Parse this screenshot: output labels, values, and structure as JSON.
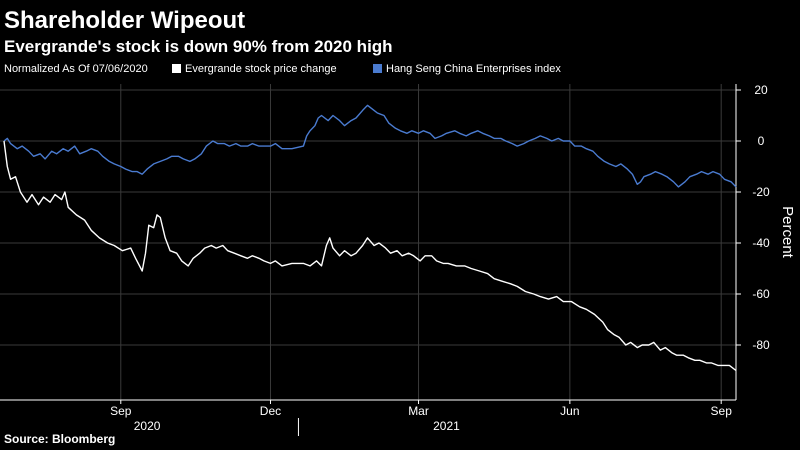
{
  "header": {
    "title": "Shareholder Wipeout",
    "subtitle": "Evergrande's stock is down 90% from 2020 high"
  },
  "legend": {
    "note": "Normalized As Of 07/06/2020",
    "items": [
      {
        "label": "Evergrande stock price change",
        "color": "#ffffff"
      },
      {
        "label": "Hang Seng China Enterprises index",
        "color": "#4a7bd0"
      }
    ]
  },
  "footer": {
    "source": "Source: Bloomberg"
  },
  "colors": {
    "background": "#000000",
    "grid": "#3a3a3a",
    "evergrande": "#ffffff",
    "hscei": "#4a7bd0"
  },
  "chart_data": {
    "type": "line",
    "title": "Shareholder Wipeout",
    "subtitle": "Evergrande's stock is down 90% from 2020 high",
    "xlabel": "",
    "ylabel": "Percent",
    "ylim": [
      -100,
      20
    ],
    "xlim": [
      "2020-07-06",
      "2021-09-24"
    ],
    "yticks": [
      20,
      0,
      -20,
      -40,
      -60,
      -80
    ],
    "xticks": [
      {
        "date": "2020-09-15",
        "label": "Sep"
      },
      {
        "date": "2020-12-15",
        "label": "Dec"
      },
      {
        "date": "2021-03-15",
        "label": "Mar"
      },
      {
        "date": "2021-06-15",
        "label": "Jun"
      },
      {
        "date": "2021-09-15",
        "label": "Sep"
      }
    ],
    "year_labels": [
      {
        "date": "2020-10-01",
        "label": "2020"
      },
      {
        "date": "2021-04-01",
        "label": "2021"
      }
    ],
    "year_divider": "2021-01-01",
    "grid": true,
    "legend_position": "top",
    "series": [
      {
        "name": "Evergrande stock price change",
        "color": "#ffffff",
        "points": [
          [
            "2020-07-06",
            0
          ],
          [
            "2020-07-08",
            -10
          ],
          [
            "2020-07-10",
            -15
          ],
          [
            "2020-07-13",
            -14
          ],
          [
            "2020-07-16",
            -20
          ],
          [
            "2020-07-20",
            -24
          ],
          [
            "2020-07-23",
            -21
          ],
          [
            "2020-07-27",
            -25
          ],
          [
            "2020-07-30",
            -22
          ],
          [
            "2020-08-03",
            -24
          ],
          [
            "2020-08-06",
            -21
          ],
          [
            "2020-08-10",
            -23
          ],
          [
            "2020-08-12",
            -20
          ],
          [
            "2020-08-14",
            -26
          ],
          [
            "2020-08-19",
            -29
          ],
          [
            "2020-08-24",
            -31
          ],
          [
            "2020-08-28",
            -35
          ],
          [
            "2020-09-02",
            -38
          ],
          [
            "2020-09-07",
            -40
          ],
          [
            "2020-09-11",
            -41
          ],
          [
            "2020-09-16",
            -43
          ],
          [
            "2020-09-21",
            -42
          ],
          [
            "2020-09-24",
            -46
          ],
          [
            "2020-09-28",
            -51
          ],
          [
            "2020-09-30",
            -44
          ],
          [
            "2020-10-02",
            -33
          ],
          [
            "2020-10-05",
            -34
          ],
          [
            "2020-10-07",
            -29
          ],
          [
            "2020-10-09",
            -30
          ],
          [
            "2020-10-12",
            -38
          ],
          [
            "2020-10-15",
            -43
          ],
          [
            "2020-10-19",
            -44
          ],
          [
            "2020-10-22",
            -47
          ],
          [
            "2020-10-26",
            -49
          ],
          [
            "2020-10-29",
            -46
          ],
          [
            "2020-11-02",
            -44
          ],
          [
            "2020-11-05",
            -42
          ],
          [
            "2020-11-09",
            -41
          ],
          [
            "2020-11-12",
            -42
          ],
          [
            "2020-11-16",
            -41
          ],
          [
            "2020-11-19",
            -43
          ],
          [
            "2020-11-23",
            -44
          ],
          [
            "2020-11-27",
            -45
          ],
          [
            "2020-12-01",
            -46
          ],
          [
            "2020-12-04",
            -45
          ],
          [
            "2020-12-08",
            -46
          ],
          [
            "2020-12-11",
            -47
          ],
          [
            "2020-12-15",
            -48
          ],
          [
            "2020-12-18",
            -47
          ],
          [
            "2020-12-22",
            -49
          ],
          [
            "2020-12-28",
            -48
          ],
          [
            "2021-01-04",
            -48
          ],
          [
            "2021-01-08",
            -49
          ],
          [
            "2021-01-12",
            -47
          ],
          [
            "2021-01-15",
            -49
          ],
          [
            "2021-01-18",
            -41
          ],
          [
            "2021-01-20",
            -38
          ],
          [
            "2021-01-22",
            -42
          ],
          [
            "2021-01-26",
            -45
          ],
          [
            "2021-01-29",
            -43
          ],
          [
            "2021-02-02",
            -45
          ],
          [
            "2021-02-05",
            -44
          ],
          [
            "2021-02-09",
            -41
          ],
          [
            "2021-02-12",
            -38
          ],
          [
            "2021-02-16",
            -41
          ],
          [
            "2021-02-19",
            -40
          ],
          [
            "2021-02-23",
            -42
          ],
          [
            "2021-02-26",
            -44
          ],
          [
            "2021-03-02",
            -43
          ],
          [
            "2021-03-05",
            -45
          ],
          [
            "2021-03-09",
            -44
          ],
          [
            "2021-03-12",
            -45
          ],
          [
            "2021-03-16",
            -47
          ],
          [
            "2021-03-19",
            -45
          ],
          [
            "2021-03-23",
            -45
          ],
          [
            "2021-03-26",
            -47
          ],
          [
            "2021-03-30",
            -48
          ],
          [
            "2021-04-02",
            -48
          ],
          [
            "2021-04-07",
            -49
          ],
          [
            "2021-04-12",
            -49
          ],
          [
            "2021-04-16",
            -50
          ],
          [
            "2021-04-21",
            -51
          ],
          [
            "2021-04-26",
            -52
          ],
          [
            "2021-04-30",
            -54
          ],
          [
            "2021-05-05",
            -55
          ],
          [
            "2021-05-10",
            -56
          ],
          [
            "2021-05-14",
            -57
          ],
          [
            "2021-05-19",
            -59
          ],
          [
            "2021-05-24",
            -60
          ],
          [
            "2021-05-28",
            -61
          ],
          [
            "2021-06-02",
            -62
          ],
          [
            "2021-06-07",
            -61
          ],
          [
            "2021-06-11",
            -63
          ],
          [
            "2021-06-16",
            -63
          ],
          [
            "2021-06-21",
            -65
          ],
          [
            "2021-06-25",
            -66
          ],
          [
            "2021-06-30",
            -68
          ],
          [
            "2021-07-05",
            -71
          ],
          [
            "2021-07-08",
            -74
          ],
          [
            "2021-07-12",
            -76
          ],
          [
            "2021-07-15",
            -77
          ],
          [
            "2021-07-19",
            -80
          ],
          [
            "2021-07-22",
            -79
          ],
          [
            "2021-07-26",
            -81
          ],
          [
            "2021-07-29",
            -80
          ],
          [
            "2021-08-02",
            -80
          ],
          [
            "2021-08-05",
            -79
          ],
          [
            "2021-08-09",
            -82
          ],
          [
            "2021-08-12",
            -81
          ],
          [
            "2021-08-16",
            -83
          ],
          [
            "2021-08-19",
            -84
          ],
          [
            "2021-08-23",
            -84
          ],
          [
            "2021-08-26",
            -85
          ],
          [
            "2021-08-30",
            -86
          ],
          [
            "2021-09-02",
            -86
          ],
          [
            "2021-09-06",
            -87
          ],
          [
            "2021-09-09",
            -87
          ],
          [
            "2021-09-13",
            -88
          ],
          [
            "2021-09-16",
            -88
          ],
          [
            "2021-09-20",
            -88
          ],
          [
            "2021-09-24",
            -90
          ]
        ]
      },
      {
        "name": "Hang Seng China Enterprises index",
        "color": "#4a7bd0",
        "points": [
          [
            "2020-07-06",
            0
          ],
          [
            "2020-07-08",
            1
          ],
          [
            "2020-07-10",
            -1
          ],
          [
            "2020-07-14",
            -3
          ],
          [
            "2020-07-17",
            -2
          ],
          [
            "2020-07-21",
            -4
          ],
          [
            "2020-07-24",
            -6
          ],
          [
            "2020-07-28",
            -5
          ],
          [
            "2020-07-31",
            -7
          ],
          [
            "2020-08-04",
            -4
          ],
          [
            "2020-08-07",
            -5
          ],
          [
            "2020-08-11",
            -3
          ],
          [
            "2020-08-14",
            -4
          ],
          [
            "2020-08-18",
            -2
          ],
          [
            "2020-08-21",
            -5
          ],
          [
            "2020-08-25",
            -4
          ],
          [
            "2020-08-28",
            -3
          ],
          [
            "2020-09-01",
            -4
          ],
          [
            "2020-09-04",
            -6
          ],
          [
            "2020-09-08",
            -8
          ],
          [
            "2020-09-11",
            -9
          ],
          [
            "2020-09-15",
            -10
          ],
          [
            "2020-09-18",
            -11
          ],
          [
            "2020-09-22",
            -12
          ],
          [
            "2020-09-25",
            -12
          ],
          [
            "2020-09-28",
            -13
          ],
          [
            "2020-10-01",
            -11
          ],
          [
            "2020-10-05",
            -9
          ],
          [
            "2020-10-09",
            -8
          ],
          [
            "2020-10-13",
            -7
          ],
          [
            "2020-10-16",
            -6
          ],
          [
            "2020-10-20",
            -6
          ],
          [
            "2020-10-23",
            -7
          ],
          [
            "2020-10-27",
            -8
          ],
          [
            "2020-10-30",
            -7
          ],
          [
            "2020-11-03",
            -5
          ],
          [
            "2020-11-06",
            -2
          ],
          [
            "2020-11-10",
            0
          ],
          [
            "2020-11-13",
            -1
          ],
          [
            "2020-11-17",
            -1
          ],
          [
            "2020-11-20",
            -2
          ],
          [
            "2020-11-24",
            -1
          ],
          [
            "2020-11-27",
            -2
          ],
          [
            "2020-12-01",
            -2
          ],
          [
            "2020-12-04",
            -1
          ],
          [
            "2020-12-08",
            -2
          ],
          [
            "2020-12-11",
            -2
          ],
          [
            "2020-12-15",
            -2
          ],
          [
            "2020-12-18",
            -1
          ],
          [
            "2020-12-22",
            -3
          ],
          [
            "2020-12-28",
            -3
          ],
          [
            "2021-01-04",
            -2
          ],
          [
            "2021-01-06",
            2
          ],
          [
            "2021-01-08",
            4
          ],
          [
            "2021-01-11",
            6
          ],
          [
            "2021-01-13",
            9
          ],
          [
            "2021-01-15",
            10
          ],
          [
            "2021-01-19",
            8
          ],
          [
            "2021-01-22",
            10
          ],
          [
            "2021-01-26",
            8
          ],
          [
            "2021-01-29",
            6
          ],
          [
            "2021-02-02",
            8
          ],
          [
            "2021-02-05",
            9
          ],
          [
            "2021-02-09",
            12
          ],
          [
            "2021-02-12",
            14
          ],
          [
            "2021-02-16",
            12
          ],
          [
            "2021-02-18",
            11
          ],
          [
            "2021-02-22",
            10
          ],
          [
            "2021-02-25",
            7
          ],
          [
            "2021-03-01",
            5
          ],
          [
            "2021-03-04",
            4
          ],
          [
            "2021-03-08",
            3
          ],
          [
            "2021-03-11",
            4
          ],
          [
            "2021-03-15",
            3
          ],
          [
            "2021-03-18",
            4
          ],
          [
            "2021-03-22",
            3
          ],
          [
            "2021-03-25",
            1
          ],
          [
            "2021-03-29",
            2
          ],
          [
            "2021-04-01",
            3
          ],
          [
            "2021-04-06",
            4
          ],
          [
            "2021-04-09",
            3
          ],
          [
            "2021-04-13",
            2
          ],
          [
            "2021-04-16",
            3
          ],
          [
            "2021-04-20",
            4
          ],
          [
            "2021-04-23",
            3
          ],
          [
            "2021-04-27",
            2
          ],
          [
            "2021-04-30",
            1
          ],
          [
            "2021-05-04",
            1
          ],
          [
            "2021-05-07",
            0
          ],
          [
            "2021-05-11",
            -1
          ],
          [
            "2021-05-14",
            -2
          ],
          [
            "2021-05-18",
            -1
          ],
          [
            "2021-05-21",
            0
          ],
          [
            "2021-05-25",
            1
          ],
          [
            "2021-05-28",
            2
          ],
          [
            "2021-06-01",
            1
          ],
          [
            "2021-06-04",
            0
          ],
          [
            "2021-06-08",
            1
          ],
          [
            "2021-06-11",
            0
          ],
          [
            "2021-06-15",
            0
          ],
          [
            "2021-06-18",
            -2
          ],
          [
            "2021-06-22",
            -2
          ],
          [
            "2021-06-25",
            -3
          ],
          [
            "2021-06-29",
            -4
          ],
          [
            "2021-07-02",
            -6
          ],
          [
            "2021-07-06",
            -8
          ],
          [
            "2021-07-09",
            -9
          ],
          [
            "2021-07-13",
            -10
          ],
          [
            "2021-07-16",
            -9
          ],
          [
            "2021-07-20",
            -11
          ],
          [
            "2021-07-23",
            -13
          ],
          [
            "2021-07-26",
            -17
          ],
          [
            "2021-07-28",
            -16
          ],
          [
            "2021-07-30",
            -14
          ],
          [
            "2021-08-03",
            -13
          ],
          [
            "2021-08-06",
            -12
          ],
          [
            "2021-08-10",
            -13
          ],
          [
            "2021-08-13",
            -14
          ],
          [
            "2021-08-17",
            -16
          ],
          [
            "2021-08-20",
            -18
          ],
          [
            "2021-08-24",
            -16
          ],
          [
            "2021-08-27",
            -14
          ],
          [
            "2021-08-31",
            -13
          ],
          [
            "2021-09-03",
            -12
          ],
          [
            "2021-09-07",
            -13
          ],
          [
            "2021-09-10",
            -12
          ],
          [
            "2021-09-14",
            -13
          ],
          [
            "2021-09-17",
            -15
          ],
          [
            "2021-09-21",
            -16
          ],
          [
            "2021-09-24",
            -18
          ]
        ]
      }
    ]
  }
}
